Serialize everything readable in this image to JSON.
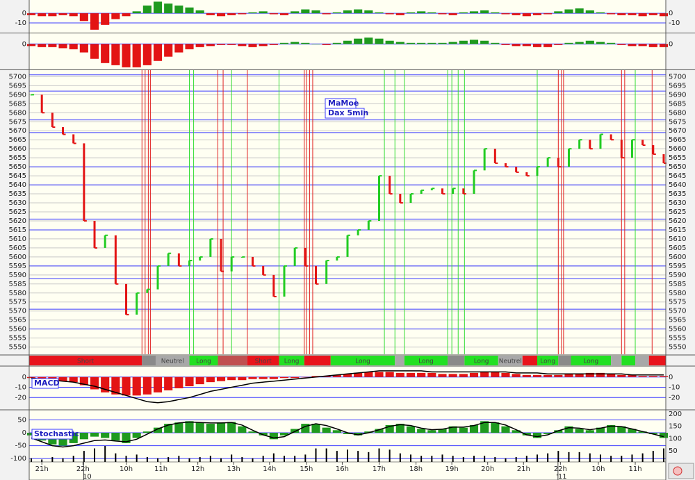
{
  "chart_data": [
    {
      "type": "bar",
      "up_color": "#1f9a1f",
      "down_color": "#e31414",
      "grid_color": "#3c3cff",
      "values": [
        -2,
        -3,
        -3,
        -2,
        -3,
        -8,
        -17,
        -12,
        -6,
        -3,
        2,
        8,
        12,
        10,
        8,
        6,
        3,
        -2,
        -3,
        -2,
        -1,
        1,
        2,
        -1,
        -2,
        2,
        4,
        3,
        -1,
        1,
        3,
        4,
        3,
        1,
        -1,
        -2,
        1,
        2,
        1,
        -1,
        -2,
        1,
        2,
        3,
        1,
        -1,
        -2,
        -3,
        -2,
        -1,
        2,
        4,
        5,
        3,
        1,
        -1,
        -2,
        -2,
        -3,
        -2,
        -3
      ],
      "ylim": [
        -20,
        13
      ],
      "yticks": [
        0,
        -10
      ]
    },
    {
      "type": "bar",
      "up_color": "#1f9a1f",
      "down_color": "#e31414",
      "grid_color": "#3c3cff",
      "values": [
        -2,
        -3,
        -3,
        -4,
        -5,
        -8,
        -14,
        -18,
        -20,
        -22,
        -22,
        -20,
        -16,
        -12,
        -8,
        -5,
        -3,
        -2,
        -1,
        -1,
        -2,
        -3,
        -2,
        -1,
        1,
        2,
        1,
        0,
        -1,
        1,
        3,
        5,
        6,
        5,
        3,
        2,
        1,
        1,
        1,
        1,
        2,
        3,
        4,
        3,
        1,
        -1,
        -2,
        -2,
        -3,
        -3,
        -1,
        1,
        2,
        3,
        2,
        1,
        -1,
        -2,
        -2,
        -3,
        -3
      ],
      "ylim": [
        -24,
        10
      ],
      "yticks": [
        0
      ]
    },
    {
      "type": "price",
      "title": "MaMoe",
      "subtitle": "Dax 5min",
      "up_color": "#22cc22",
      "down_color": "#e31414",
      "grid_color": "#c8c8c8",
      "level_color": "#3c3cff",
      "buy_color": "#33dd33",
      "sell_color": "#e02020",
      "values": [
        5690,
        5680,
        5672,
        5668,
        5663,
        5620,
        5605,
        5612,
        5585,
        5568,
        5580,
        5582,
        5595,
        5602,
        5595,
        5598,
        5600,
        5610,
        5592,
        5600,
        5600,
        5595,
        5590,
        5578,
        5595,
        5605,
        5595,
        5585,
        5598,
        5600,
        5612,
        5615,
        5620,
        5645,
        5635,
        5630,
        5635,
        5637,
        5638,
        5635,
        5638,
        5635,
        5648,
        5660,
        5652,
        5650,
        5647,
        5645,
        5650,
        5655,
        5650,
        5660,
        5665,
        5660,
        5668,
        5665,
        5655,
        5665,
        5662,
        5657,
        5652
      ],
      "levels": [
        5701,
        5692,
        5676,
        5669,
        5650,
        5640,
        5621,
        5615,
        5595,
        5588,
        5571,
        5560
      ],
      "sell_signals": [
        10.5,
        10.8,
        11.1,
        11.3,
        17.7,
        18.2,
        20.5,
        25.9,
        26.1,
        26.4,
        26.7,
        50,
        50.3,
        50.5,
        56,
        56.3,
        58.9
      ],
      "buy_signals": [
        15,
        15.4,
        19,
        23.5,
        33.5,
        34.5,
        35.4,
        39.5,
        39.9,
        40.5,
        41.1,
        48,
        57.3
      ],
      "ylim": [
        5546,
        5704
      ],
      "yticks": [
        5550,
        5555,
        5560,
        5565,
        5570,
        5575,
        5580,
        5585,
        5590,
        5595,
        5600,
        5605,
        5610,
        5615,
        5620,
        5625,
        5630,
        5635,
        5640,
        5645,
        5650,
        5655,
        5660,
        5665,
        5670,
        5675,
        5680,
        5685,
        5690,
        5695,
        5700
      ]
    },
    {
      "type": "timeline",
      "segments": [
        {
          "start": -0.2,
          "end": 10.5,
          "color": "#e8141b",
          "label": "Short"
        },
        {
          "start": 10.5,
          "end": 11.8,
          "color": "#8a8a8a"
        },
        {
          "start": 11.8,
          "end": 15,
          "color": "#a8a8a8",
          "label": "Neutrel"
        },
        {
          "start": 15,
          "end": 17.7,
          "color": "#22e022",
          "label": "Long"
        },
        {
          "start": 17.7,
          "end": 20.5,
          "color": "#c05050"
        },
        {
          "start": 20.5,
          "end": 23.5,
          "color": "#e8141b",
          "label": "Short"
        },
        {
          "start": 23.5,
          "end": 25.9,
          "color": "#22e022",
          "label": "Long"
        },
        {
          "start": 25.9,
          "end": 28.4,
          "color": "#e8141b"
        },
        {
          "start": 28.4,
          "end": 34.5,
          "color": "#22e022",
          "label": "Long"
        },
        {
          "start": 34.5,
          "end": 35.4,
          "color": "#a8a8a8"
        },
        {
          "start": 35.4,
          "end": 39.5,
          "color": "#22e022",
          "label": "Long"
        },
        {
          "start": 39.5,
          "end": 41.1,
          "color": "#8a8a8a"
        },
        {
          "start": 41.1,
          "end": 44.3,
          "color": "#22e022",
          "label": "Long"
        },
        {
          "start": 44.3,
          "end": 46.6,
          "color": "#a8a8a8",
          "label": "Neutrel"
        },
        {
          "start": 46.6,
          "end": 48,
          "color": "#e8141b"
        },
        {
          "start": 48,
          "end": 50,
          "color": "#22e022",
          "label": "Long"
        },
        {
          "start": 50,
          "end": 51.2,
          "color": "#8a8a8a"
        },
        {
          "start": 51.2,
          "end": 55,
          "color": "#22e022",
          "label": "Long"
        },
        {
          "start": 55,
          "end": 56,
          "color": "#a8a8a8"
        },
        {
          "start": 56,
          "end": 57.3,
          "color": "#22e022"
        },
        {
          "start": 57.3,
          "end": 58.6,
          "color": "#a8a8a8"
        },
        {
          "start": 58.6,
          "end": 60.2,
          "color": "#e8141b"
        }
      ]
    },
    {
      "type": "macd",
      "title": "MACD",
      "grid_color": "#3c3cff",
      "series": [
        {
          "kind": "bar",
          "color": "#e31414",
          "values": [
            -1,
            -2,
            -3,
            -4,
            -5,
            -8,
            -12,
            -15,
            -17,
            -18,
            -18,
            -17,
            -15,
            -13,
            -11,
            -9,
            -7,
            -5,
            -4,
            -3,
            -3,
            -2,
            -2,
            -2,
            -1,
            -1,
            0,
            1,
            1,
            2,
            3,
            4,
            5,
            5,
            5,
            4,
            4,
            4,
            4,
            3,
            3,
            3,
            4,
            5,
            5,
            4,
            3,
            2,
            2,
            2,
            2,
            3,
            3,
            4,
            4,
            3,
            2,
            2,
            1,
            1,
            1
          ]
        },
        {
          "kind": "line",
          "color": "#000000",
          "values": [
            -1,
            -2,
            -3,
            -4,
            -5,
            -7,
            -9,
            -12,
            -15,
            -18,
            -21,
            -24,
            -25,
            -24,
            -22,
            -20,
            -17,
            -14,
            -12,
            -10,
            -8,
            -6,
            -5,
            -4,
            -3,
            -2,
            -1,
            0,
            1,
            2,
            3,
            4,
            5,
            6,
            6,
            6,
            6,
            6,
            5,
            5,
            5,
            5,
            5,
            5,
            5,
            5,
            4,
            4,
            4,
            3,
            3,
            3,
            3,
            3,
            3,
            3,
            3,
            2,
            2,
            2,
            2
          ]
        }
      ],
      "ylim": [
        -32,
        10
      ],
      "yticks": [
        0,
        -10,
        -20
      ]
    },
    {
      "type": "stochastic",
      "title": "Stochastic",
      "grid_color": "#3c3cff",
      "series": [
        {
          "kind": "bar",
          "color": "#1f9a1f",
          "values": [
            -10,
            -30,
            -45,
            -50,
            -40,
            -25,
            -15,
            -20,
            -30,
            -40,
            -20,
            5,
            20,
            35,
            40,
            45,
            40,
            35,
            40,
            42,
            25,
            5,
            -10,
            -25,
            -10,
            15,
            35,
            35,
            20,
            10,
            -5,
            -10,
            5,
            15,
            30,
            35,
            25,
            15,
            10,
            15,
            25,
            20,
            30,
            45,
            40,
            25,
            10,
            -10,
            -20,
            -5,
            10,
            25,
            15,
            10,
            20,
            30,
            25,
            15,
            5,
            -5,
            -20
          ]
        },
        {
          "kind": "line",
          "color": "#000000",
          "values": [
            -20,
            -35,
            -50,
            -55,
            -50,
            -40,
            -30,
            -28,
            -32,
            -35,
            -25,
            -5,
            15,
            30,
            38,
            42,
            40,
            38,
            38,
            40,
            30,
            10,
            -8,
            -20,
            -15,
            5,
            25,
            35,
            28,
            15,
            0,
            -8,
            0,
            12,
            25,
            32,
            28,
            18,
            12,
            14,
            22,
            22,
            28,
            40,
            40,
            30,
            12,
            -8,
            -15,
            -8,
            8,
            20,
            18,
            12,
            18,
            26,
            24,
            15,
            5,
            -5,
            -15
          ]
        },
        {
          "kind": "bar",
          "axis": "y2",
          "color": "#000000",
          "values": [
            20,
            15,
            25,
            20,
            30,
            50,
            60,
            70,
            40,
            30,
            35,
            25,
            20,
            25,
            30,
            20,
            25,
            30,
            20,
            35,
            25,
            20,
            30,
            40,
            30,
            30,
            35,
            60,
            60,
            50,
            55,
            50,
            45,
            60,
            55,
            40,
            35,
            30,
            30,
            35,
            30,
            25,
            30,
            30,
            25,
            20,
            25,
            30,
            35,
            40,
            50,
            45,
            45,
            40,
            35,
            30,
            30,
            35,
            40,
            50,
            60
          ]
        }
      ],
      "ylim": [
        -113,
        89
      ],
      "yticks": [
        50,
        0,
        -50,
        -100
      ],
      "y2lim": [
        5,
        217
      ],
      "y2ticks": [
        200,
        150,
        100,
        50
      ],
      "xlim": [
        -0.2,
        60.2
      ],
      "xticks": [
        {
          "value": 1,
          "label": "21h"
        },
        {
          "value": 4.9,
          "label": "22h"
        },
        {
          "value": 9,
          "label": "10h"
        },
        {
          "value": 12.3,
          "label": "11h"
        },
        {
          "value": 15.8,
          "label": "12h"
        },
        {
          "value": 19.2,
          "label": "13h"
        },
        {
          "value": 22.6,
          "label": "14h"
        },
        {
          "value": 26.1,
          "label": "15h"
        },
        {
          "value": 29.5,
          "label": "16h"
        },
        {
          "value": 33,
          "label": "17h"
        },
        {
          "value": 36.5,
          "label": "18h"
        },
        {
          "value": 39.9,
          "label": "19h"
        },
        {
          "value": 43.3,
          "label": "20h"
        },
        {
          "value": 46.7,
          "label": "21h"
        },
        {
          "value": 50.2,
          "label": "22h"
        },
        {
          "value": 53.8,
          "label": "10h"
        },
        {
          "value": 57.3,
          "label": "11h"
        }
      ],
      "date_labels": [
        {
          "value": 5.3,
          "label": "10"
        },
        {
          "value": 50.3,
          "label": "'11"
        }
      ]
    }
  ]
}
